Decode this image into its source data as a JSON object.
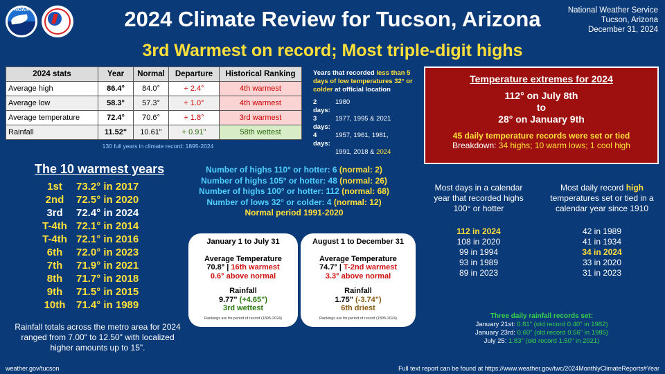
{
  "header": {
    "title": "2024 Climate Review for Tucson, Arizona",
    "subtitle": "3rd Warmest on record; Most triple-digit highs",
    "office_line1": "National Weather Service",
    "office_line2": "Tucson, Arizona",
    "office_date": "December 31, 2024",
    "logo_noaa_text": "NOAA"
  },
  "stats": {
    "headers": [
      "2024 stats",
      "Year",
      "Normal",
      "Departure",
      "Historical Ranking"
    ],
    "rows": [
      {
        "label": "Average high",
        "year": "86.4°",
        "normal": "84.0°",
        "departure": "+ 2.4°",
        "ranking": "4th warmest"
      },
      {
        "label": "Average low",
        "year": "58.3°",
        "normal": "57.3°",
        "departure": "+ 1.0°",
        "ranking": "4th warmest"
      },
      {
        "label": "Average temperature",
        "year": "72.4°",
        "normal": "70.6°",
        "departure": "+ 1.8°",
        "ranking": "3rd warmest"
      },
      {
        "label": "Rainfall",
        "year": "11.52\"",
        "normal": "10.61\"",
        "departure": "+ 0.91\"",
        "ranking": "58th wettest"
      }
    ],
    "note": "130 full years in climate record: 1895-2024"
  },
  "cold_days": {
    "intro_a": "Years that recorded ",
    "intro_b": "less than 5 days of low temperatures 32° or colder",
    "intro_c": " at official location",
    "rows": [
      {
        "k": "2 days:",
        "v": "1980"
      },
      {
        "k": "3 days:",
        "v": "1977, 1995 & 2021"
      },
      {
        "k": "4 days:",
        "v": "1957, 1961,  1981,"
      },
      {
        "k": "",
        "v": "1991, 2018 & "
      }
    ],
    "last_year": "2024"
  },
  "extremes": {
    "heading": "Temperature extremes for 2024",
    "high": "112° on July 8th",
    "to": "to",
    "low": "28° on January 9th",
    "records": "45 daily temperature records were set or tied",
    "breakdown_prefix": "Breakdown: ",
    "breakdown": "34 highs; 10 warm lows; 1 cool high"
  },
  "warmest": {
    "title": "The 10 warmest years",
    "rows": [
      {
        "rank": "1st",
        "value": "73.2° in 2017"
      },
      {
        "rank": "2nd",
        "value": "72.5° in 2020"
      },
      {
        "rank": "3rd",
        "value": "72.4° in 2024"
      },
      {
        "rank": "T-4th",
        "value": "72.1° in 2014"
      },
      {
        "rank": "T-4th",
        "value": "72.1° in 2016"
      },
      {
        "rank": "6th",
        "value": "72.0° in 2023"
      },
      {
        "rank": "7th",
        "value": "71.9° in 2021"
      },
      {
        "rank": "8th",
        "value": "71.7° in 2018"
      },
      {
        "rank": "9th",
        "value": "71.5° in 2015"
      },
      {
        "rank": "10th",
        "value": "71.4° in 1989"
      }
    ],
    "rain_note": "Rainfall totals across the metro area for 2024 ranged from 7.00\" to 12.50\" with localized higher amounts up to 15\"."
  },
  "counts": {
    "rows": [
      {
        "text": "Number of highs 110° or hotter: 6 ",
        "normal": "(normal: 2)"
      },
      {
        "text": "Number of highs 105° or hotter: 48 ",
        "normal": "(normal: 26)"
      },
      {
        "text": "Number of highs 100° or hotter: 112 ",
        "normal": "(normal: 68)"
      },
      {
        "text": "Number of lows 32° or colder: 4 ",
        "normal": "(normal: 12)"
      }
    ],
    "period": "Normal period 1991-2020"
  },
  "card1": {
    "heading": "January 1 to July 31",
    "avg_label": "Average Temperature",
    "avg_value": "70.8° | ",
    "avg_rank": "16th warmest",
    "avg_dep": "0.6° above normal",
    "rain_label": "Rainfall",
    "rain_value": "9.77\" ",
    "rain_dep": "(+4.65\")",
    "rain_rank": "3rd wettest",
    "fine": "Rankings are for period of record (1895-2024)"
  },
  "card2": {
    "heading": "August 1 to December 31",
    "avg_label": "Average Temperature",
    "avg_value": "74.7° | ",
    "avg_rank": "T-2nd warmest",
    "avg_dep": "3.3° above normal",
    "rain_label": "Rainfall",
    "rain_value": "1.75\" ",
    "rain_dep": "(-3.74\")",
    "rain_rank": "6th driest",
    "fine": "Rankings are for period of record (1895-2024)"
  },
  "most_days": {
    "heading": "Most days in a calendar year that recorded highs 100° or hotter",
    "rows": [
      "112 in 2024",
      "108 in 2020",
      "99 in 1994",
      "93 in 1989",
      "89 in 2023"
    ]
  },
  "most_records": {
    "heading_a": "Most daily record ",
    "heading_b": "high",
    "heading_c": " temperatures set or tied in a calendar year since 1910",
    "rows": [
      "42 in 1989",
      "41 in 1934",
      "34 in 2024",
      "33 in 2020",
      "31 in 2023"
    ]
  },
  "rain_records": {
    "heading": "Three daily rainfall records set:",
    "rows": [
      {
        "date": "January 21st: ",
        "value": "0.81\" (old record 0.40\" in 1982)"
      },
      {
        "date": "January 23rd: ",
        "value": "0.60\" (old record 0.56\" in 1985)"
      },
      {
        "date": "July 25: ",
        "value": "1.83\" (old record 1.50\" in 2021)"
      }
    ]
  },
  "footer": {
    "left": "weather.gov/tucson",
    "right": "Full text report can be found at https://www.weather.gov/twc/2024MonthlyClimateReports#Year"
  }
}
